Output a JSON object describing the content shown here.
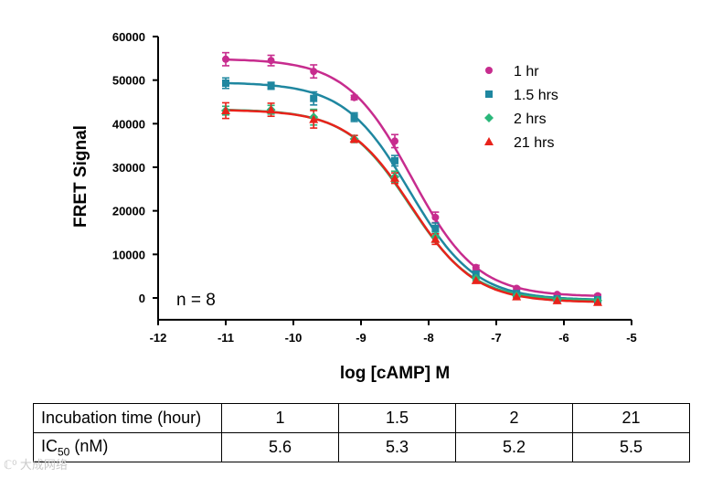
{
  "chart_data": {
    "type": "scatter",
    "xlabel": "log [cAMP] M",
    "ylabel": "FRET Signal",
    "xlim": [
      -12,
      -5
    ],
    "ylim": [
      -5000,
      60000
    ],
    "x_ticks": [
      -12,
      -11,
      -10,
      -9,
      -8,
      -7,
      -6,
      -5
    ],
    "y_ticks": [
      0,
      10000,
      20000,
      30000,
      40000,
      50000,
      60000
    ],
    "annotation": "n = 8",
    "legend_position": "top-right",
    "x": [
      -11,
      -10.33,
      -9.7,
      -9.1,
      -8.5,
      -7.9,
      -7.3,
      -6.7,
      -6.1,
      -5.5
    ],
    "series": [
      {
        "name": "1 hr",
        "color": "#c72c8e",
        "marker": "circle",
        "values": [
          54800,
          54500,
          52000,
          46000,
          36000,
          18500,
          7000,
          2200,
          800,
          500
        ],
        "errors": [
          1500,
          1200,
          1500,
          500,
          1500,
          1200,
          500,
          300,
          300,
          300
        ],
        "fit": {
          "top": 54900,
          "bottom": 300,
          "logIC50": -8.25,
          "hill": 0.9
        }
      },
      {
        "name": "1.5 hrs",
        "color": "#1f87a0",
        "marker": "square",
        "values": [
          49300,
          48700,
          45800,
          41500,
          31500,
          16000,
          5500,
          1000,
          -200,
          -400
        ],
        "errors": [
          1200,
          800,
          1500,
          1000,
          1200,
          1200,
          600,
          300,
          300,
          300
        ],
        "fit": {
          "top": 49500,
          "bottom": -500,
          "logIC50": -8.28,
          "hill": 0.9
        }
      },
      {
        "name": "2 hrs",
        "color": "#2ab77a",
        "marker": "diamond",
        "values": [
          43000,
          43200,
          41500,
          36500,
          27800,
          14000,
          4500,
          500,
          -400,
          -600
        ],
        "errors": [
          1000,
          1000,
          1800,
          800,
          1300,
          1200,
          500,
          300,
          300,
          300
        ],
        "fit": {
          "top": 43300,
          "bottom": -600,
          "logIC50": -8.28,
          "hill": 0.92
        }
      },
      {
        "name": "21 hrs",
        "color": "#e8231b",
        "marker": "triangle",
        "values": [
          43000,
          43200,
          41000,
          36500,
          27500,
          13500,
          4000,
          300,
          -600,
          -1000
        ],
        "errors": [
          1800,
          1500,
          2000,
          800,
          1200,
          1200,
          500,
          300,
          300,
          300
        ],
        "fit": {
          "top": 43200,
          "bottom": -1000,
          "logIC50": -8.26,
          "hill": 0.92
        }
      }
    ]
  },
  "table": {
    "row1_label": "Incubation time (hour)",
    "times": [
      "1",
      "1.5",
      "2",
      "21"
    ],
    "row2_label_main": "IC",
    "row2_label_sub": "50",
    "row2_label_unit": " (nM)",
    "ic50": [
      "5.6",
      "5.3",
      "5.2",
      "5.5"
    ]
  },
  "watermark": "ℂ⁰ 大成网络"
}
